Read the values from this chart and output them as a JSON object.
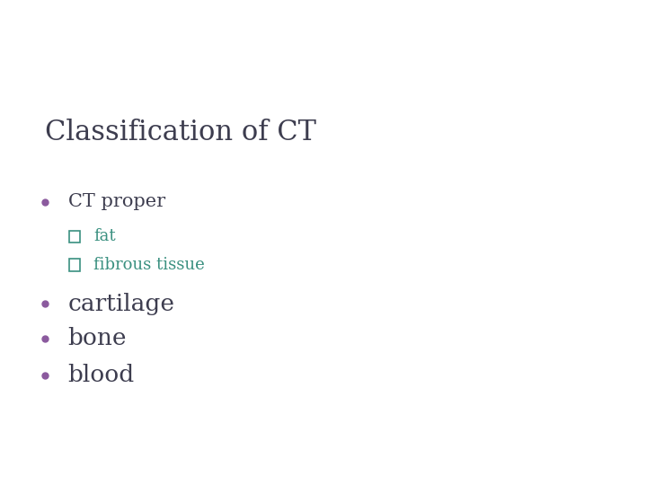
{
  "title": "Classification of CT",
  "title_color": "#3d3d4f",
  "title_fontsize": 22,
  "background_color": "#ffffff",
  "header_dark_color": "#3d3d4f",
  "header_teal_color": "#3a7d82",
  "header_light_color": "#a8bec5",
  "header_lighter_color": "#c5d5da",
  "bullet_color": "#8b5a9e",
  "sub_color": "#3a9080",
  "items": [
    {
      "text": "CT proper",
      "level": 0,
      "fy": 0.695,
      "fontsize": 15,
      "color": "#3d3d4f"
    },
    {
      "text": "fat",
      "level": 1,
      "fy": 0.61,
      "fontsize": 13,
      "color": "#3a9080"
    },
    {
      "text": "fibrous tissue",
      "level": 1,
      "fy": 0.54,
      "fontsize": 13,
      "color": "#3a9080"
    },
    {
      "text": "cartilage",
      "level": 0,
      "fy": 0.445,
      "fontsize": 19,
      "color": "#3d3d4f"
    },
    {
      "text": "bone",
      "level": 0,
      "fy": 0.36,
      "fontsize": 19,
      "color": "#3d3d4f"
    },
    {
      "text": "blood",
      "level": 0,
      "fy": 0.27,
      "fontsize": 19,
      "color": "#3d3d4f"
    }
  ]
}
